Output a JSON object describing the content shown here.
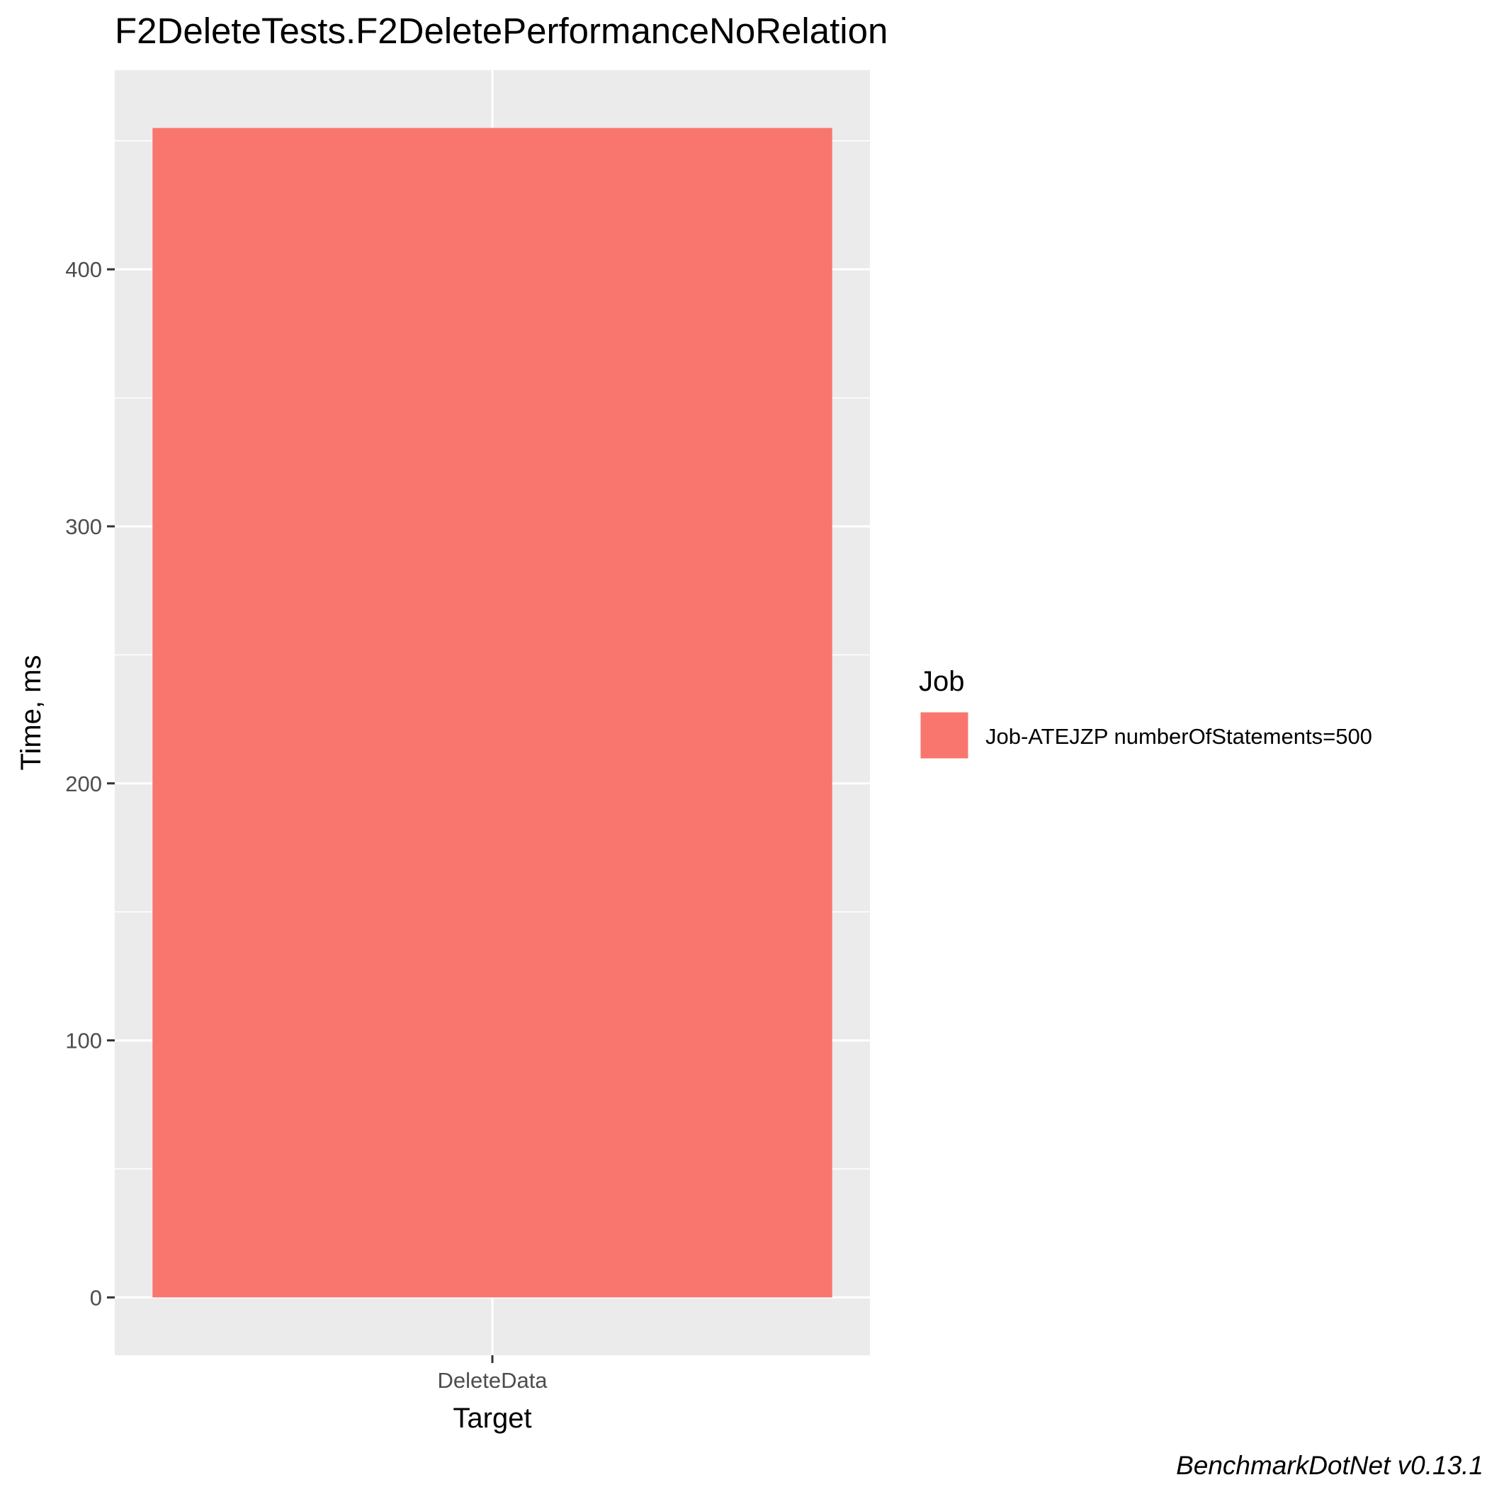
{
  "chart_data": {
    "type": "bar",
    "title": "F2DeleteTests.F2DeletePerformanceNoRelation",
    "xlabel": "Target",
    "ylabel": "Time, ms",
    "categories": [
      "DeleteData"
    ],
    "series": [
      {
        "name": "Job-ATEJZP numberOfStatements=500",
        "values": [
          455
        ],
        "color": "#F8766D"
      }
    ],
    "ylim": [
      -22.5,
      477.5
    ],
    "yticks": [
      0,
      100,
      200,
      300,
      400
    ],
    "yticks_minor": [
      50,
      150,
      250,
      350,
      450
    ],
    "grid": true,
    "legend": {
      "title": "Job",
      "position": "right"
    },
    "caption": "BenchmarkDotNet v0.13.1"
  }
}
